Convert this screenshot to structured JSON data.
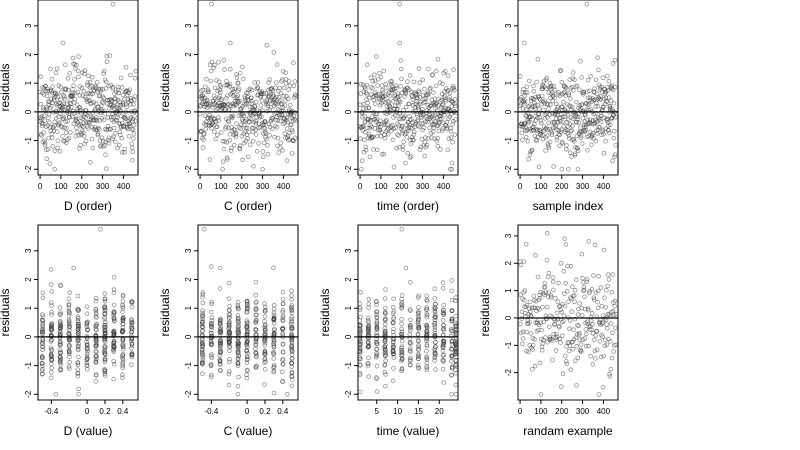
{
  "chart_data": [
    {
      "type": "scatter",
      "xlabel": "D (order)",
      "ylabel": "residuals",
      "xlim": [
        -10,
        470
      ],
      "ylim": [
        -2.2,
        3.9
      ],
      "xticks": [
        0,
        100,
        200,
        300,
        400
      ],
      "yticks": [
        -2,
        -1,
        0,
        1,
        2,
        3
      ],
      "hline": 0,
      "x_mode": "index",
      "n_points": 460,
      "highlights": [
        {
          "x": 110,
          "y": 2.4
        },
        {
          "x": 350,
          "y": 3.75
        },
        {
          "x": 70,
          "y": -2.0
        }
      ]
    },
    {
      "type": "scatter",
      "xlabel": "C (order)",
      "ylabel": "residuals",
      "xlim": [
        -10,
        470
      ],
      "ylim": [
        -2.2,
        3.9
      ],
      "xticks": [
        0,
        100,
        200,
        300,
        400
      ],
      "yticks": [
        -2,
        -1,
        0,
        1,
        2,
        3
      ],
      "hline": 0,
      "x_mode": "index",
      "n_points": 460,
      "highlights": [
        {
          "x": 55,
          "y": 3.75
        },
        {
          "x": 145,
          "y": 2.4
        },
        {
          "x": 300,
          "y": -2.0
        }
      ]
    },
    {
      "type": "scatter",
      "xlabel": "time (order)",
      "ylabel": "residuals",
      "xlim": [
        -10,
        470
      ],
      "ylim": [
        -2.2,
        3.9
      ],
      "xticks": [
        0,
        100,
        200,
        300,
        400
      ],
      "yticks": [
        -2,
        -1,
        0,
        1,
        2,
        3
      ],
      "hline": 0,
      "x_mode": "index",
      "n_points": 460,
      "highlights": [
        {
          "x": 190,
          "y": 3.75
        },
        {
          "x": 190,
          "y": 2.4
        },
        {
          "x": 440,
          "y": -2.0
        }
      ]
    },
    {
      "type": "scatter",
      "xlabel": "sample index",
      "ylabel": "residuals",
      "xlim": [
        -10,
        470
      ],
      "ylim": [
        -2.2,
        3.9
      ],
      "xticks": [
        0,
        100,
        200,
        300,
        400
      ],
      "yticks": [
        -2,
        -1,
        0,
        1,
        2,
        3
      ],
      "hline": 0,
      "x_mode": "index",
      "n_points": 460,
      "highlights": [
        {
          "x": 320,
          "y": 3.75
        },
        {
          "x": 20,
          "y": 2.4
        },
        {
          "x": 200,
          "y": -2.0
        }
      ]
    },
    {
      "type": "scatter",
      "xlabel": "D (value)",
      "ylabel": "residuals",
      "xlim": [
        -0.55,
        0.57
      ],
      "ylim": [
        -2.2,
        3.9
      ],
      "xticks": [
        -0.4,
        0.0,
        0.2,
        0.4
      ],
      "yticks": [
        -2,
        -1,
        0,
        1,
        2,
        3
      ],
      "hline": 0,
      "x_mode": "discrete",
      "x_levels": [
        -0.5,
        -0.4,
        -0.3,
        -0.2,
        -0.1,
        0.0,
        0.1,
        0.2,
        0.3,
        0.4,
        0.5
      ],
      "n_points": 460,
      "highlights": [
        {
          "x": 0.15,
          "y": 3.75
        },
        {
          "x": -0.15,
          "y": 2.4
        },
        {
          "x": -0.35,
          "y": -2.0
        }
      ]
    },
    {
      "type": "scatter",
      "xlabel": "C (value)",
      "ylabel": "residuals",
      "xlim": [
        -0.55,
        0.57
      ],
      "ylim": [
        -2.2,
        3.9
      ],
      "xticks": [
        -0.4,
        0.0,
        0.2,
        0.4
      ],
      "yticks": [
        -2,
        -1,
        0,
        1,
        2,
        3
      ],
      "hline": 0,
      "x_mode": "discrete",
      "x_levels": [
        -0.5,
        -0.4,
        -0.3,
        -0.2,
        -0.1,
        0.0,
        0.1,
        0.2,
        0.3,
        0.4,
        0.5
      ],
      "n_points": 460,
      "highlights": [
        {
          "x": -0.48,
          "y": 3.75
        },
        {
          "x": -0.3,
          "y": 2.4
        },
        {
          "x": 0.45,
          "y": -2.0
        }
      ]
    },
    {
      "type": "scatter",
      "xlabel": "time (value)",
      "ylabel": "residuals",
      "xlim": [
        0.5,
        24.5
      ],
      "ylim": [
        -2.2,
        3.9
      ],
      "xticks": [
        5,
        10,
        15,
        20
      ],
      "yticks": [
        -2,
        -1,
        0,
        1,
        2,
        3
      ],
      "hline": 0,
      "x_mode": "discrete",
      "x_levels": [
        1,
        3,
        5,
        7,
        9,
        11,
        13,
        15,
        17,
        19,
        21,
        23,
        24
      ],
      "n_points": 460,
      "highlights": [
        {
          "x": 11,
          "y": 3.75
        },
        {
          "x": 12,
          "y": 2.4
        },
        {
          "x": 24,
          "y": -2.0
        }
      ]
    },
    {
      "type": "scatter",
      "xlabel": "randam example",
      "ylabel": "residuals",
      "xlim": [
        -10,
        470
      ],
      "ylim": [
        -3.0,
        3.4
      ],
      "xticks": [
        0,
        100,
        200,
        300,
        400
      ],
      "yticks": [
        -2,
        -1,
        0,
        1,
        2,
        3
      ],
      "hline": 0,
      "x_mode": "index",
      "n_points": 300,
      "highlights": [
        {
          "x": 130,
          "y": 3.1
        },
        {
          "x": 330,
          "y": 2.8
        },
        {
          "x": 100,
          "y": -2.8
        }
      ]
    }
  ]
}
